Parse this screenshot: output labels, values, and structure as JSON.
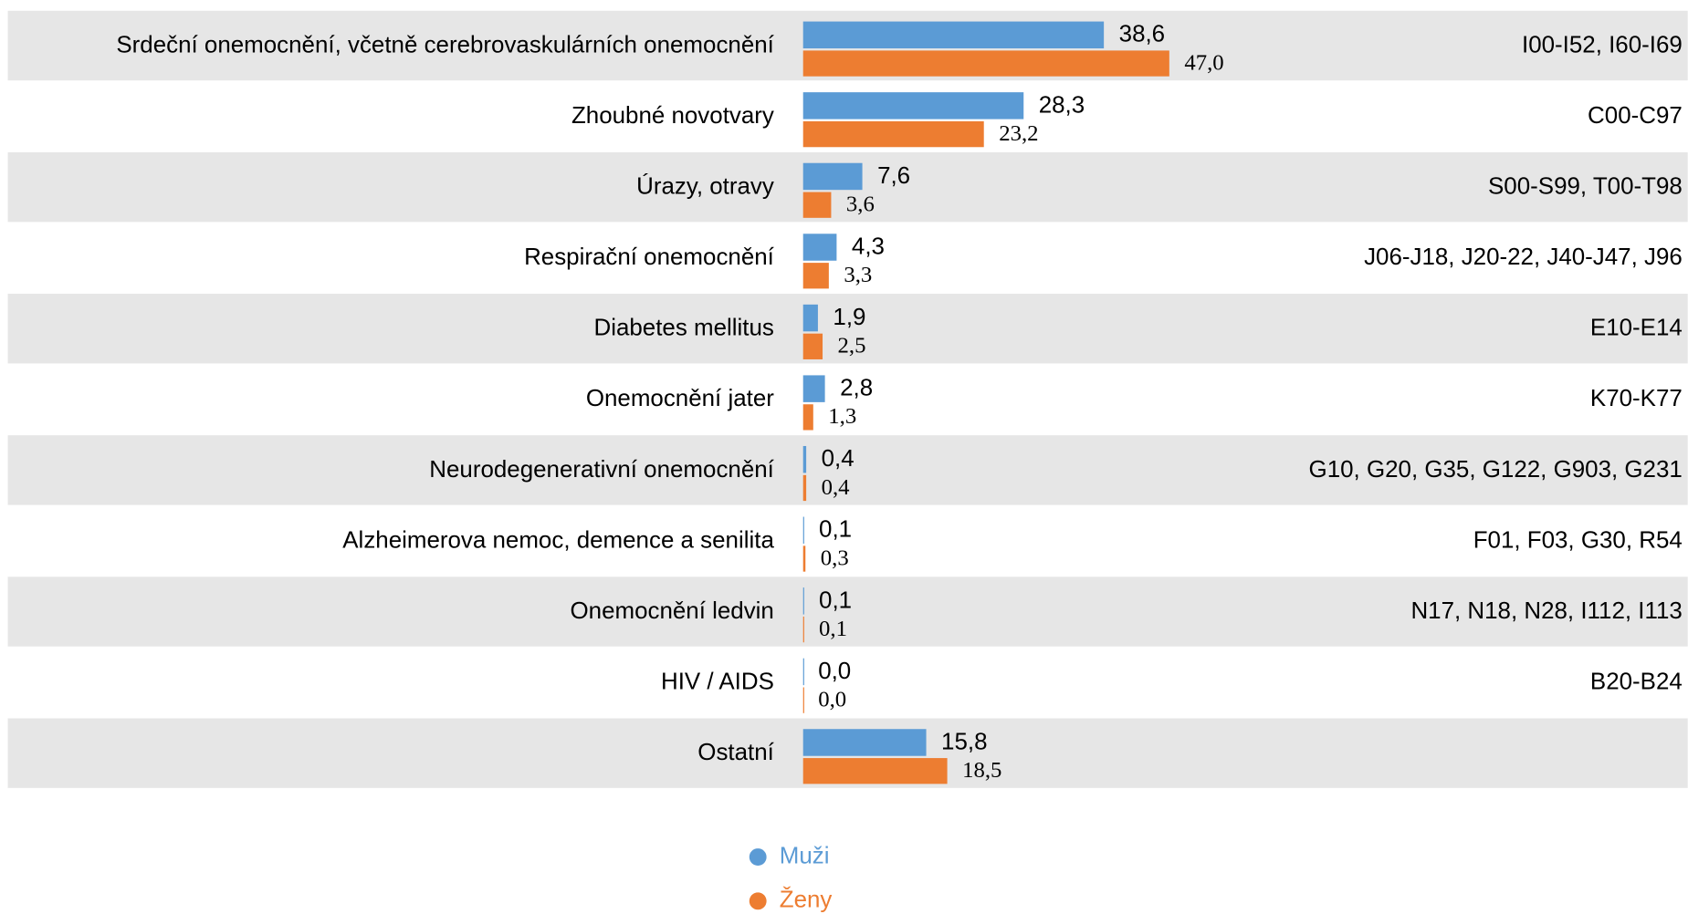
{
  "chart_data": {
    "type": "bar",
    "orientation": "horizontal",
    "categories": [
      "Srdeční onemocnění, včetně cerebrovaskulárních onemocnění",
      "Zhoubné novotvary",
      "Úrazy, otravy",
      "Respirační onemocnění",
      "Diabetes mellitus",
      "Onemocnění jater",
      "Neurodegenerativní onemocnění",
      "Alzheimerova nemoc, demence a senilita",
      "Onemocnění ledvin",
      "HIV / AIDS",
      "Ostatní"
    ],
    "codes": [
      "I00-I52, I60-I69",
      "C00-C97",
      "S00-S99, T00-T98",
      "J06-J18, J20-22, J40-J47, J96",
      "E10-E14",
      "K70-K77",
      "G10, G20, G35, G122, G903, G231",
      "F01, F03, G30, R54",
      "N17, N18, N28, I112, I113",
      "B20-B24",
      null
    ],
    "series": [
      {
        "name": "Muži",
        "color": "#5b9bd5",
        "values": [
          38.6,
          28.3,
          7.6,
          4.3,
          1.9,
          2.8,
          0.4,
          0.1,
          0.1,
          0.0,
          15.8
        ],
        "value_labels": [
          "38,6",
          "28,3",
          "7,6",
          "4,3",
          "1,9",
          "2,8",
          "0,4",
          "0,1",
          "0,1",
          "0,0",
          "15,8"
        ]
      },
      {
        "name": "Ženy",
        "color": "#ed7d31",
        "values": [
          47.0,
          23.2,
          3.6,
          3.3,
          2.5,
          1.3,
          0.4,
          0.3,
          0.1,
          0.0,
          18.5
        ],
        "value_labels": [
          "47,0",
          "23,2",
          "3,6",
          "3,3",
          "2,5",
          "1,3",
          "0,4",
          "0,3",
          "0,1",
          "0,0",
          "18,5"
        ]
      }
    ],
    "xlim": [
      0,
      100
    ],
    "row_shading": true
  }
}
